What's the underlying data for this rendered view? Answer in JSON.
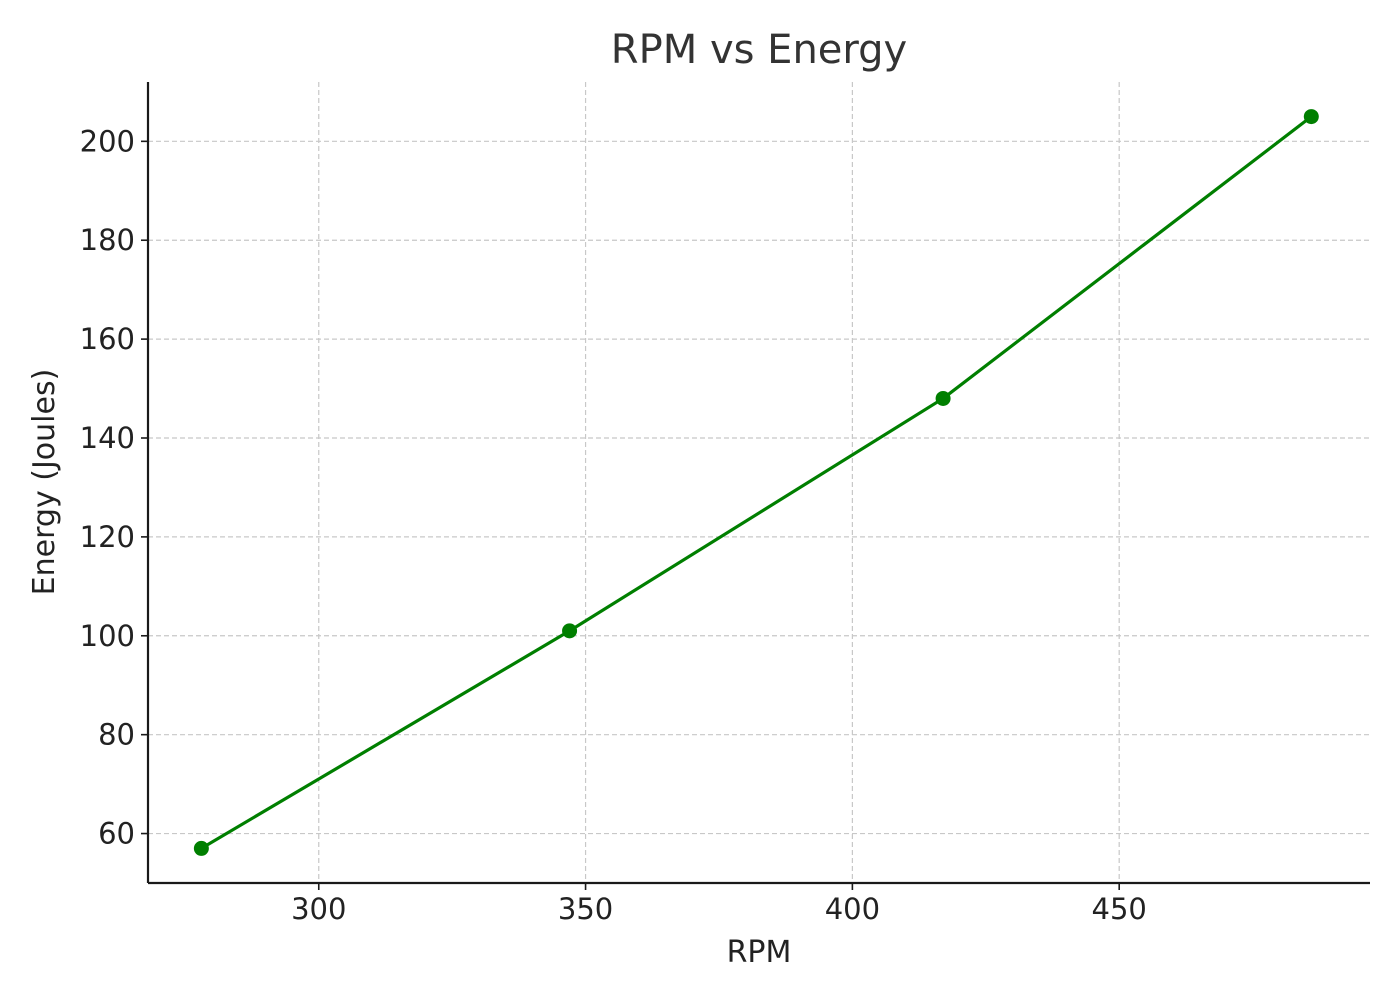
{
  "chart_data": {
    "type": "line",
    "title": "RPM vs Energy",
    "xlabel": "RPM",
    "ylabel": "Energy (Joules)",
    "xlim": [
      268,
      497
    ],
    "ylim": [
      50,
      212
    ],
    "xticks": [
      300,
      350,
      400,
      450
    ],
    "yticks": [
      60,
      80,
      100,
      120,
      140,
      160,
      180,
      200
    ],
    "grid": true,
    "legend": "none",
    "series": [
      {
        "color": "#007f00",
        "marker": "circle",
        "x": [
          278,
          347,
          417,
          486
        ],
        "y": [
          57,
          101,
          148,
          205
        ]
      }
    ]
  }
}
